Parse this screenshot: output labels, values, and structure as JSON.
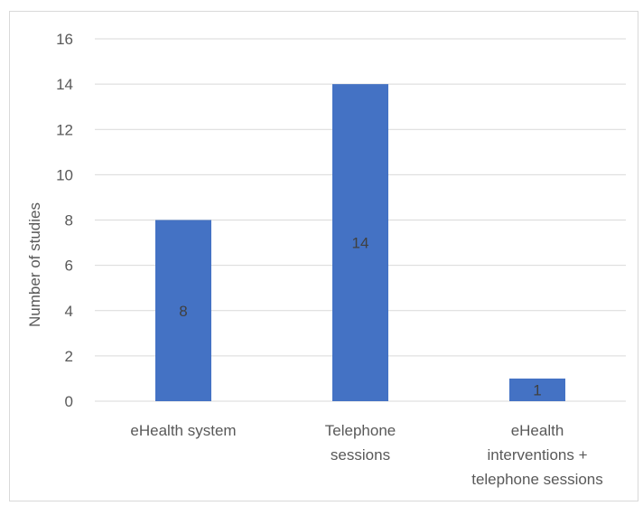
{
  "chart_data": {
    "type": "bar",
    "categories": [
      [
        "eHealth system"
      ],
      [
        "Telephone",
        "sessions"
      ],
      [
        "eHealth",
        "interventions +",
        "telephone sessions"
      ]
    ],
    "values": [
      8,
      14,
      1
    ],
    "data_labels": [
      "8",
      "14",
      "1"
    ],
    "title": "",
    "xlabel": "",
    "ylabel": "Number of studies",
    "ylim": [
      0,
      16
    ],
    "yticks": [
      "0",
      "2",
      "4",
      "6",
      "8",
      "10",
      "12",
      "14",
      "16"
    ],
    "grid": true,
    "legend": "none",
    "colors": {
      "bar": "#4472C4",
      "grid": "#d9d9d9",
      "text": "#595959"
    }
  }
}
